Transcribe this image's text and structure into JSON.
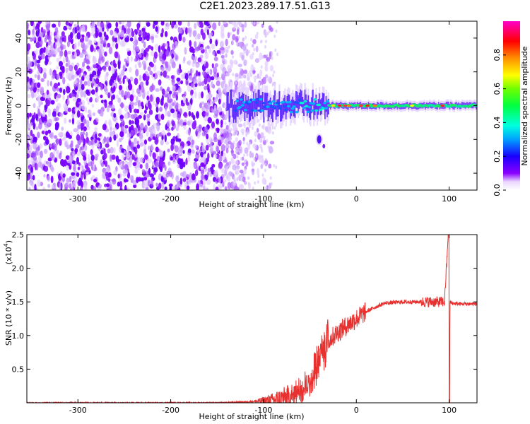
{
  "title": "C2E1.2023.289.17.51.G13",
  "chart_data": [
    {
      "type": "heatmap",
      "xlabel": "Height of straight line (km)",
      "ylabel": "Frequency (Hz)",
      "xlim": [
        -355,
        130
      ],
      "ylim": [
        -50,
        50
      ],
      "xticks": [
        "-300",
        "-200",
        "-100",
        "0",
        "100"
      ],
      "yticks": [
        "-40",
        "-20",
        "0",
        "20",
        "40"
      ],
      "colorbar": {
        "label": "Normalized spectral amplitude",
        "range": [
          0.0,
          1.0
        ],
        "ticks": [
          "0.0",
          "0.2",
          "0.4",
          "0.6",
          "0.8"
        ]
      },
      "band_center_hz": 0,
      "noise_region_km": [
        -355,
        -85
      ],
      "signal_region_km": [
        -140,
        130
      ],
      "secondary_blob": {
        "x_km": -40,
        "freq_hz": -20
      }
    },
    {
      "type": "line",
      "xlabel": "Height of straight line (km)",
      "ylabel": "SNR (10 * v/v)",
      "multiplier": "(x10",
      "multiplier_exp": "4",
      "xlim": [
        -355,
        130
      ],
      "ylim": [
        0,
        2.5
      ],
      "xticks": [
        "-300",
        "-200",
        "-100",
        "0",
        "100"
      ],
      "yticks": [
        "0.5",
        "1.0",
        "1.5",
        "2.0",
        "2.5"
      ],
      "color": "#e8312f",
      "series": [
        {
          "x": [
            -355,
            -300,
            -250,
            -200,
            -150,
            -110,
            -90,
            -70,
            -55,
            -45,
            -35,
            -28,
            -20,
            -10,
            0,
            10,
            20,
            30,
            50,
            70,
            85,
            95,
            99,
            100,
            101,
            103,
            110,
            130
          ],
          "y": [
            0.0,
            0.0,
            0.0,
            0.0,
            0.0,
            0.02,
            0.04,
            0.1,
            0.25,
            0.5,
            0.8,
            0.95,
            1.05,
            1.15,
            1.25,
            1.35,
            1.42,
            1.48,
            1.5,
            1.5,
            1.5,
            1.5,
            2.5,
            0.0,
            1.5,
            1.48,
            1.47,
            1.47
          ]
        }
      ]
    }
  ]
}
